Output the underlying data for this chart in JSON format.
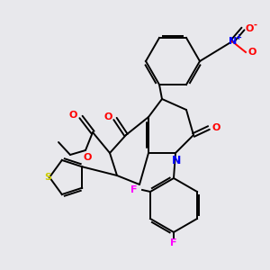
{
  "bg_color": "#e8e8ec",
  "atom_colors": {
    "N_nitro": "#0000ff",
    "O": "#ff0000",
    "N_ring": "#0000ff",
    "S": "#cccc00",
    "F": "#ff00ff",
    "C": "#000000"
  },
  "fig_size": [
    3.0,
    3.0
  ],
  "dpi": 100,
  "lw": 1.4
}
